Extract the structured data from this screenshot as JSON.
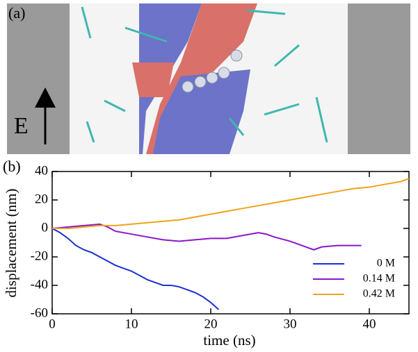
{
  "panel_a": {
    "label": "(a)",
    "field_label": "E"
  },
  "chart_data": {
    "type": "line",
    "panel_label": "(b)",
    "x_label": "time (ns)",
    "y_label": "displacement (nm)",
    "xlim": [
      0,
      45
    ],
    "xticks": [
      0,
      10,
      20,
      30,
      40
    ],
    "ylim": [
      -60,
      40
    ],
    "yticks": [
      -60,
      -40,
      -20,
      0,
      20,
      40
    ],
    "legend": "lower right",
    "series": [
      {
        "name": "0 M",
        "color": "#1a2fd6",
        "x": [
          0,
          1,
          2,
          3,
          4,
          5,
          6,
          7,
          8,
          9,
          10,
          11,
          12,
          13,
          14,
          15,
          16,
          17,
          18,
          19,
          20,
          21
        ],
        "values": [
          0,
          -3,
          -7,
          -12,
          -15,
          -17,
          -20,
          -23,
          -26,
          -28,
          -30,
          -33,
          -36,
          -38,
          -40,
          -40,
          -41,
          -43,
          -45,
          -48,
          -52,
          -57
        ]
      },
      {
        "name": "0.14 M",
        "color": "#8a16c8",
        "x": [
          0,
          2,
          4,
          6,
          7,
          8,
          10,
          12,
          14,
          16,
          18,
          20,
          22,
          24,
          26,
          27,
          28,
          30,
          32,
          33,
          34,
          36,
          38,
          39
        ],
        "values": [
          0,
          1,
          2,
          3,
          1,
          -2,
          -4,
          -6,
          -8,
          -9,
          -8,
          -7,
          -7,
          -5,
          -3,
          -4,
          -6,
          -9,
          -13,
          -15,
          -13,
          -12,
          -12,
          -12
        ]
      },
      {
        "name": "0.42 M",
        "color": "#f0a21c",
        "x": [
          0,
          2,
          4,
          6,
          8,
          10,
          12,
          14,
          16,
          18,
          20,
          22,
          24,
          26,
          28,
          30,
          32,
          34,
          36,
          38,
          40,
          42,
          44,
          45
        ],
        "values": [
          0,
          0,
          1,
          2,
          2,
          3,
          4,
          5,
          6,
          8,
          10,
          12,
          14,
          16,
          18,
          20,
          22,
          24,
          26,
          28,
          29,
          31,
          33,
          35
        ]
      }
    ]
  }
}
